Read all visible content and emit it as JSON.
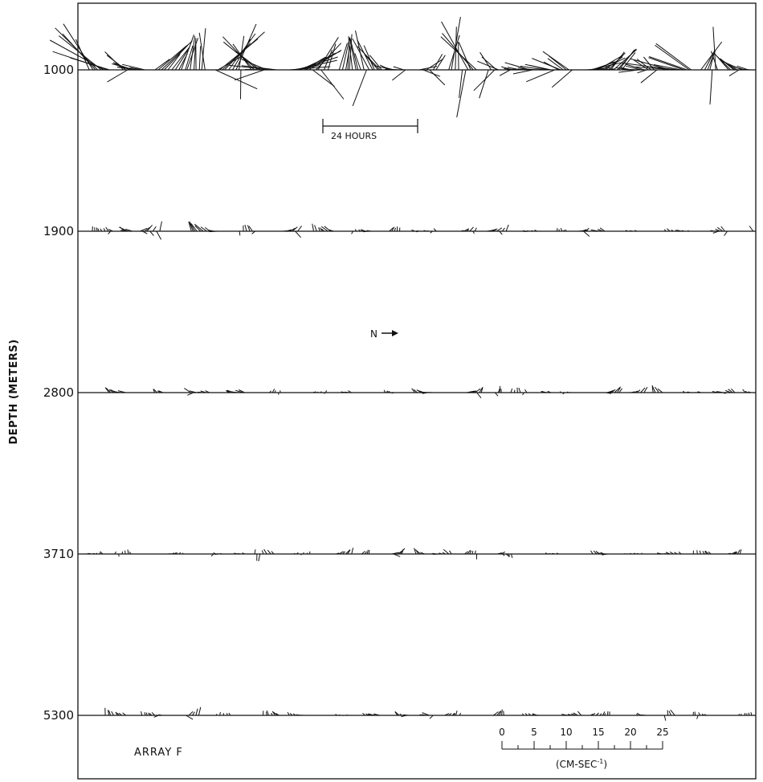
{
  "chart_data": {
    "type": "stick-vector time series",
    "ylabel": "DEPTH (METERS)",
    "depths": [
      "1000",
      "1900",
      "2800",
      "3710",
      "5300"
    ],
    "time_scale_label": "24 HOURS",
    "north_label": "N",
    "array_label": "ARRAY F",
    "speed_scale": {
      "ticks": [
        "0",
        "5",
        "10",
        "15",
        "20",
        "25"
      ],
      "unit_prefix": "(CM-SEC",
      "unit_exponent": "-1",
      "unit_suffix": ")"
    },
    "series_activity": [
      {
        "depth": "1000",
        "level": 1.0
      },
      {
        "depth": "1900",
        "level": 0.45
      },
      {
        "depth": "2800",
        "level": 0.3
      },
      {
        "depth": "3710",
        "level": 0.25
      },
      {
        "depth": "5300",
        "level": 0.3
      }
    ]
  }
}
